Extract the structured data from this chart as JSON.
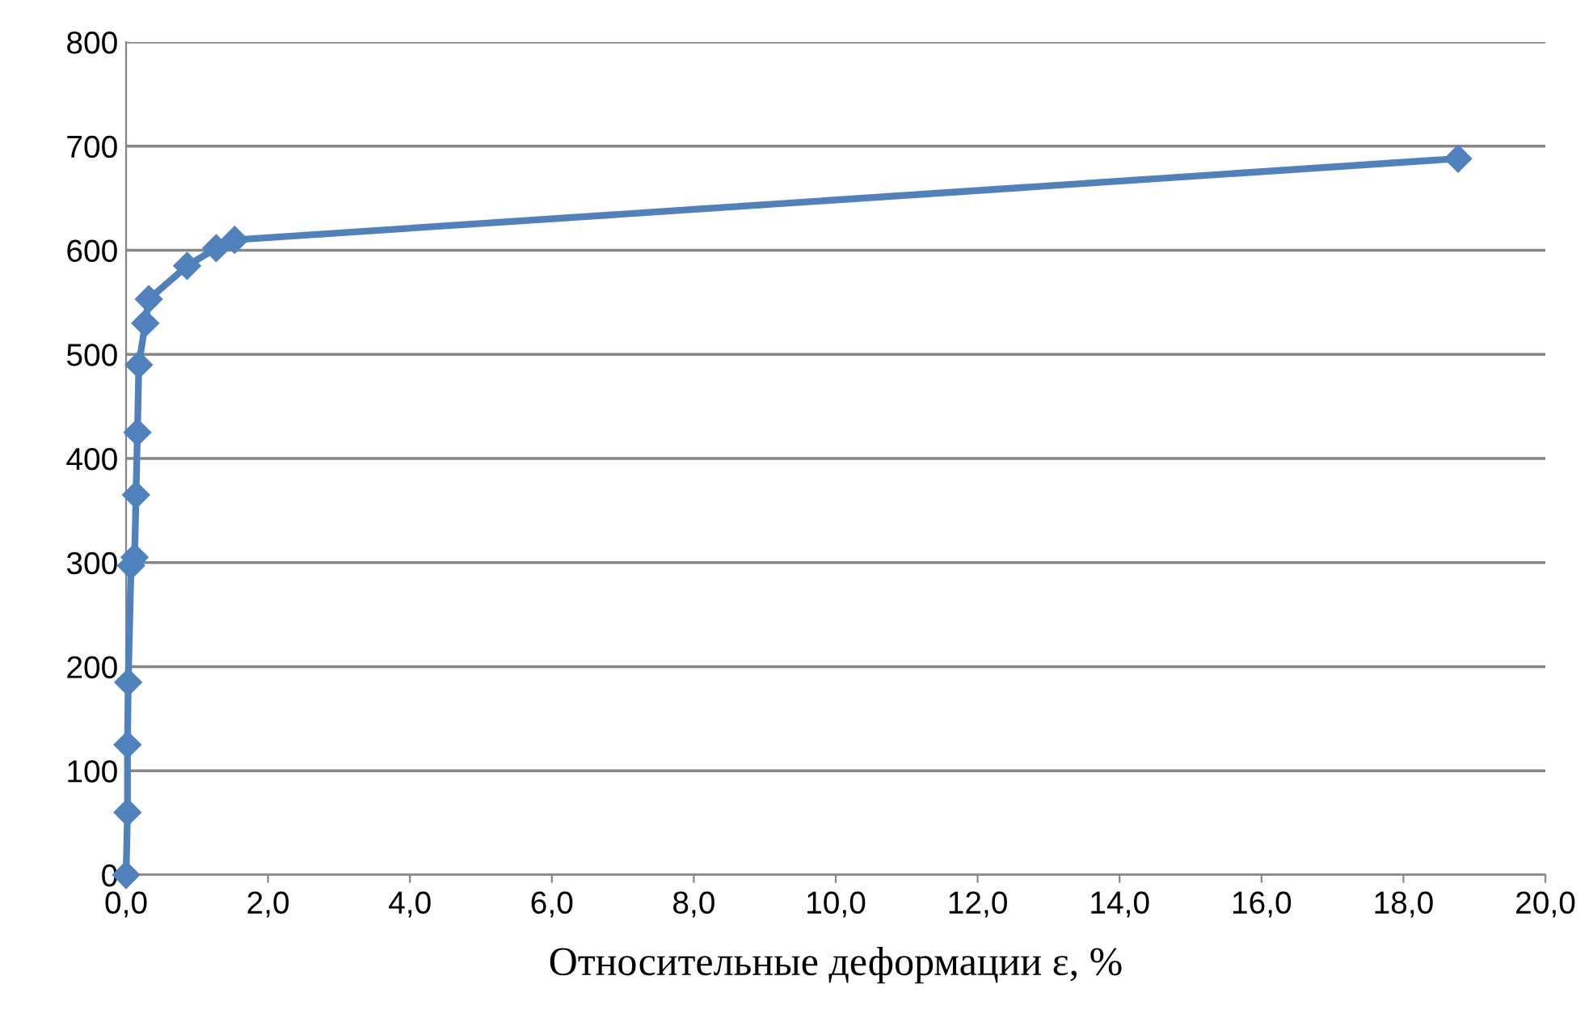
{
  "chart_data": {
    "type": "line",
    "xlabel": "Относительные деформации ε, %",
    "x": [
      0,
      0.02,
      0.02,
      0.03,
      0.07,
      0.12,
      0.14,
      0.16,
      0.18,
      0.27,
      0.32,
      0.86,
      1.27,
      1.53,
      18.77
    ],
    "series": [
      {
        "color": "#4f81bd",
        "values": [
          0,
          60,
          125,
          185,
          297,
          305,
          365,
          425,
          490,
          530,
          553,
          585,
          602,
          610,
          688
        ]
      }
    ],
    "xlim": [
      0,
      20
    ],
    "xticks": [
      {
        "value": 0,
        "label": "0,0"
      },
      {
        "value": 2,
        "label": "2,0"
      },
      {
        "value": 4,
        "label": "4,0"
      },
      {
        "value": 6,
        "label": "6,0"
      },
      {
        "value": 8,
        "label": "8,0"
      },
      {
        "value": 10,
        "label": "10,0"
      },
      {
        "value": 12,
        "label": "12,0"
      },
      {
        "value": 14,
        "label": "14,0"
      },
      {
        "value": 16,
        "label": "16,0"
      },
      {
        "value": 18,
        "label": "18,0"
      },
      {
        "value": 20,
        "label": "20,0"
      }
    ],
    "ylim": [
      0,
      800
    ],
    "yticks": [
      0,
      100,
      200,
      300,
      400,
      500,
      600,
      700,
      800
    ],
    "grid": true,
    "marker": "diamond",
    "line_style": "solid"
  }
}
